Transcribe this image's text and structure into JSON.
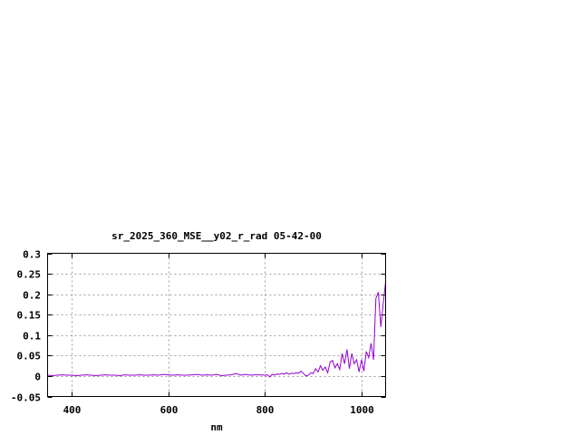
{
  "chart_data": {
    "type": "line",
    "title": "sr_2025_360_MSE__y02_r_rad 05-42-00",
    "xlabel": "nm",
    "ylabel": "",
    "xlim": [
      350,
      1050
    ],
    "ylim": [
      -0.05,
      0.3
    ],
    "xticks": [
      400,
      600,
      800,
      1000
    ],
    "xtick_labels": [
      "400",
      "600",
      "800",
      "1000"
    ],
    "yticks": [
      -0.05,
      0,
      0.05,
      0.1,
      0.15,
      0.2,
      0.25,
      0.3
    ],
    "ytick_labels": [
      "-0.05",
      "0",
      "0.05",
      "0.1",
      "0.15",
      "0.2",
      "0.25",
      "0.3"
    ],
    "grid": true,
    "line_color": "#9400d3",
    "series": [
      {
        "x": [
          350,
          360,
          370,
          380,
          390,
          400,
          410,
          420,
          430,
          440,
          450,
          460,
          470,
          480,
          490,
          500,
          510,
          520,
          530,
          540,
          550,
          560,
          570,
          580,
          590,
          600,
          610,
          620,
          630,
          640,
          650,
          660,
          670,
          680,
          690,
          700,
          710,
          720,
          730,
          740,
          750,
          760,
          770,
          780,
          790,
          800,
          805,
          810,
          815,
          820,
          825,
          830,
          835,
          840,
          845,
          850,
          855,
          860,
          865,
          870,
          875,
          880,
          885,
          890,
          895,
          900,
          905,
          910,
          915,
          920,
          925,
          930,
          935,
          940,
          945,
          950,
          955,
          960,
          965,
          970,
          975,
          980,
          985,
          990,
          995,
          1000,
          1005,
          1010,
          1015,
          1020,
          1025,
          1030,
          1035,
          1040,
          1045,
          1050
        ],
        "y": [
          0.002,
          0.001,
          0.002,
          0.003,
          0.002,
          0.002,
          0.001,
          0.002,
          0.003,
          0.002,
          0.001,
          0.002,
          0.003,
          0.002,
          0.002,
          0.001,
          0.003,
          0.002,
          0.002,
          0.003,
          0.002,
          0.002,
          0.003,
          0.002,
          0.004,
          0.003,
          0.002,
          0.003,
          0.002,
          0.002,
          0.003,
          0.004,
          0.002,
          0.003,
          0.002,
          0.004,
          0.001,
          0.002,
          0.003,
          0.006,
          0.002,
          0.004,
          0.002,
          0.003,
          0.003,
          0.002,
          0.003,
          -0.002,
          0.004,
          0.002,
          0.005,
          0.004,
          0.006,
          0.005,
          0.008,
          0.004,
          0.007,
          0.006,
          0.008,
          0.007,
          0.012,
          0.006,
          0.0,
          0.002,
          0.008,
          0.006,
          0.018,
          0.01,
          0.025,
          0.014,
          0.022,
          0.008,
          0.034,
          0.038,
          0.02,
          0.03,
          0.016,
          0.055,
          0.03,
          0.065,
          0.018,
          0.055,
          0.03,
          0.04,
          0.01,
          0.04,
          0.012,
          0.06,
          0.045,
          0.08,
          0.04,
          0.19,
          0.205,
          0.12,
          0.175,
          0.23
        ]
      }
    ]
  }
}
